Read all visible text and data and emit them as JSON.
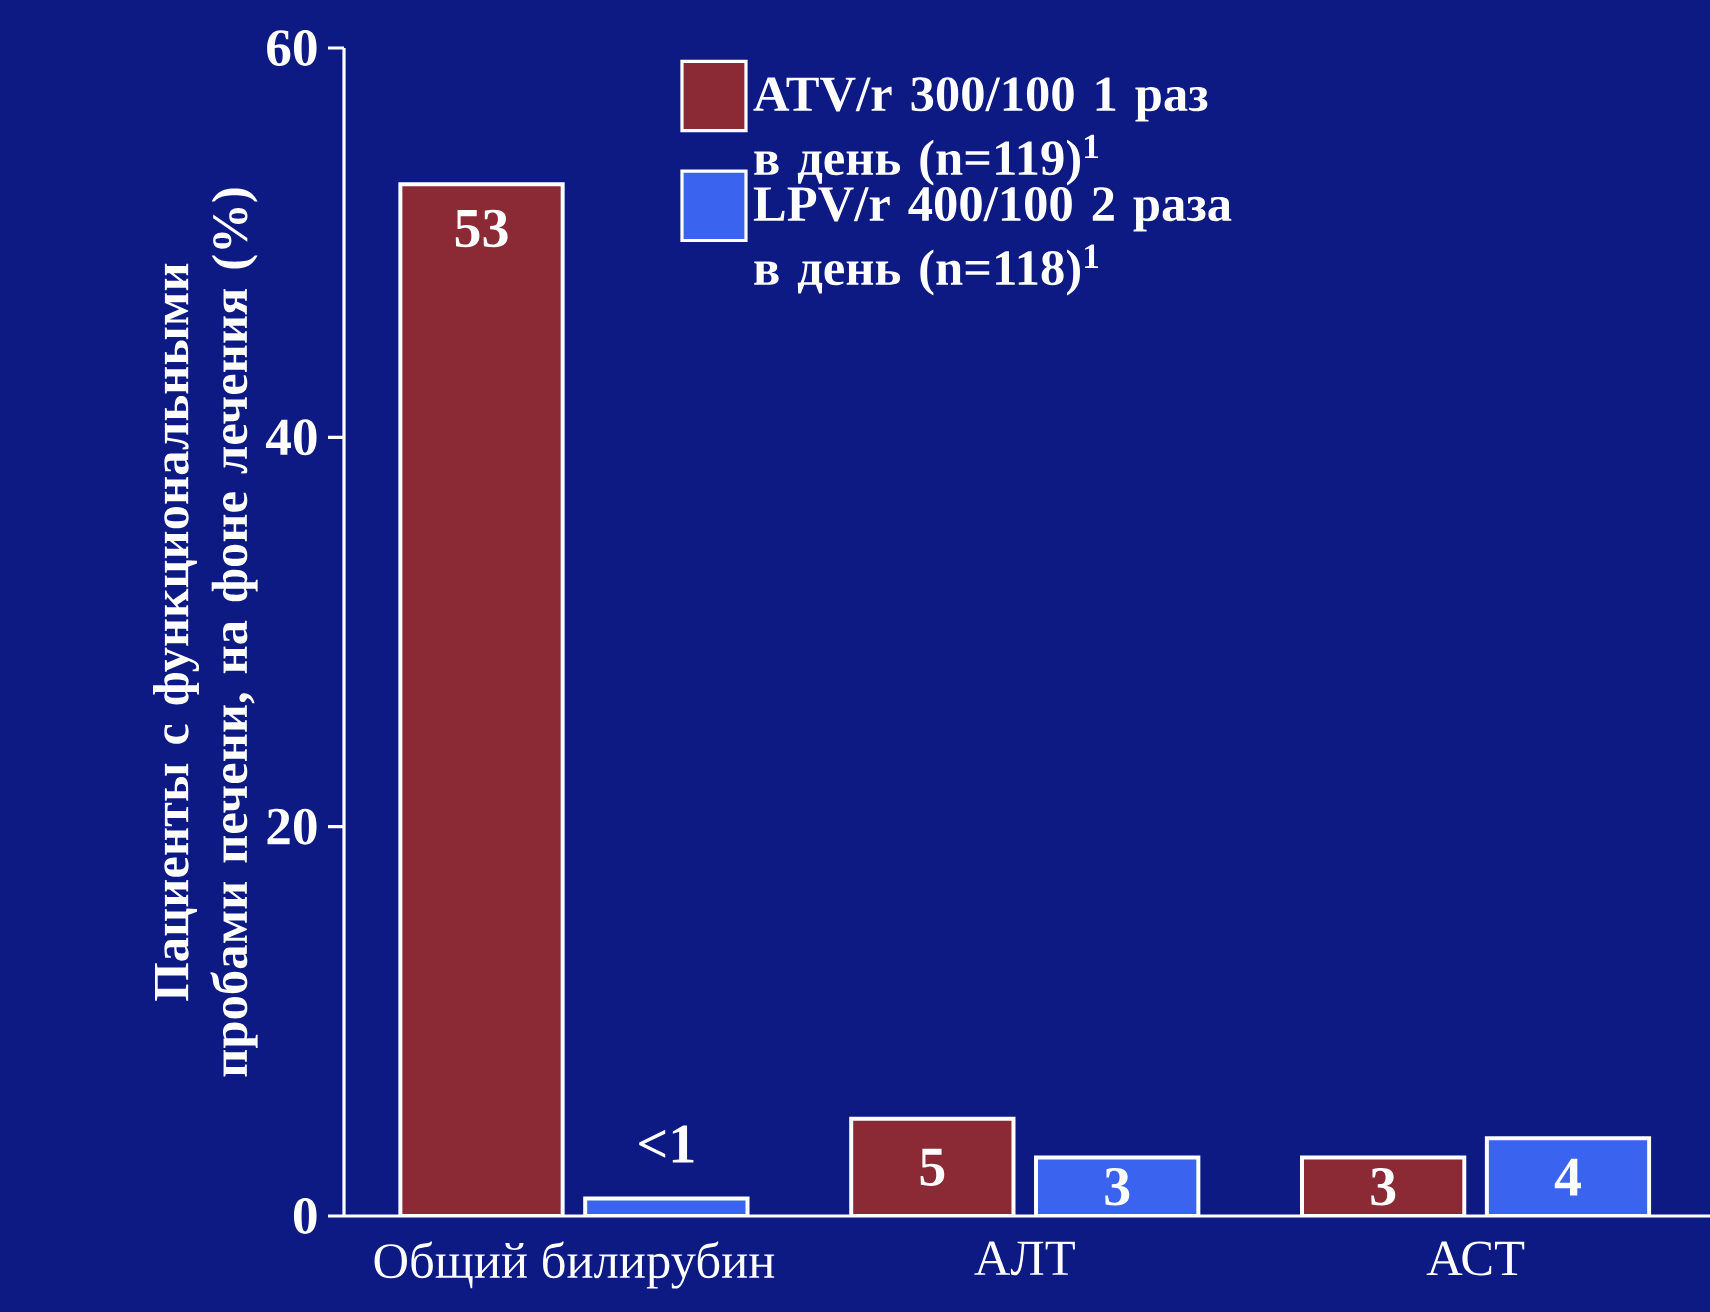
{
  "chart_data": {
    "type": "bar",
    "ylabel": "Пациенты с функциональными пробами печени, на фоне лечения (%)",
    "categories": [
      "Общий билирубин",
      "АЛТ",
      "АСТ"
    ],
    "series": [
      {
        "name": "ATV/r 300/100 1 раз в день (n=119)$^{1}$",
        "color": "#8b2a35",
        "values": [
          53,
          5,
          3
        ],
        "value_labels": [
          "53",
          "5",
          "3"
        ]
      },
      {
        "name": "LPV/r 400/100 2 раза в день (n=118)$^{1}$",
        "color": "#3a64f0",
        "values": [
          0.9,
          3,
          4
        ],
        "value_labels": [
          "<1",
          "3",
          "4"
        ]
      }
    ],
    "ylim": [
      0,
      60
    ],
    "yticks": [
      0,
      20,
      40,
      60
    ],
    "legend": "top"
  }
}
